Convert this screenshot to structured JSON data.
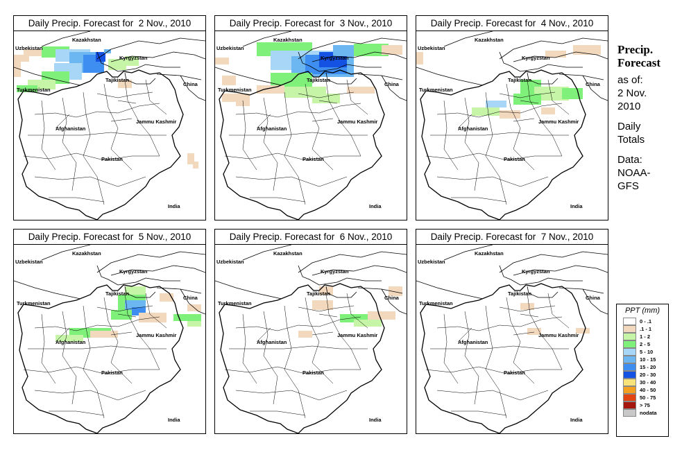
{
  "panels": [
    {
      "title": "Daily Precip. Forecast for  2 Nov., 2010",
      "day": 2
    },
    {
      "title": "Daily Precip. Forecast for  3 Nov., 2010",
      "day": 3
    },
    {
      "title": "Daily Precip. Forecast for  4 Nov., 2010",
      "day": 4
    },
    {
      "title": "Daily Precip. Forecast for  5 Nov., 2010",
      "day": 5
    },
    {
      "title": "Daily Precip. Forecast for  6 Nov., 2010",
      "day": 6
    },
    {
      "title": "Daily Precip. Forecast for  7 Nov., 2010",
      "day": 7
    }
  ],
  "map_labels": {
    "kazakhstan": "Kazakhstan",
    "uzbekistan": "Uzbekistan",
    "kyrgyzstan": "Kyrgyzstan",
    "tajikistan": "Tajikistan",
    "turkmenistan": "Turkmenistan",
    "china": "China",
    "afghanistan": "Afghanistan",
    "jammu_kashmir": "Jammu Kashmir",
    "pakistan": "Pakistan",
    "india": "India"
  },
  "sidebar": {
    "title_line1": "Precip.",
    "title_line2": "Forecast",
    "asof_line1": "as of:",
    "asof_line2": "2 Nov.",
    "asof_line3": "2010",
    "totals_line1": "Daily",
    "totals_line2": "Totals",
    "source_line1": "Data:",
    "source_line2": "NOAA-",
    "source_line3": "GFS"
  },
  "legend": {
    "title": "PPT (mm)",
    "items": [
      {
        "label": "0 - .1",
        "color": "#ffffff"
      },
      {
        "label": ".1 - 1",
        "color": "#f2d8bd"
      },
      {
        "label": "1 - 2",
        "color": "#c6f5a8"
      },
      {
        "label": "2 - 5",
        "color": "#7ff07a"
      },
      {
        "label": "5 - 10",
        "color": "#a7d6f6"
      },
      {
        "label": "10 - 15",
        "color": "#6cb6f2"
      },
      {
        "label": "15 - 20",
        "color": "#3d8ef0"
      },
      {
        "label": "20 - 30",
        "color": "#1452e3"
      },
      {
        "label": "30 - 40",
        "color": "#f8e27a"
      },
      {
        "label": "40 - 50",
        "color": "#f4a020"
      },
      {
        "label": "50 - 75",
        "color": "#e24512"
      },
      {
        "label": "> 75",
        "color": "#a3170f"
      },
      {
        "label": "nodata",
        "color": "#c8c8c8"
      }
    ]
  }
}
